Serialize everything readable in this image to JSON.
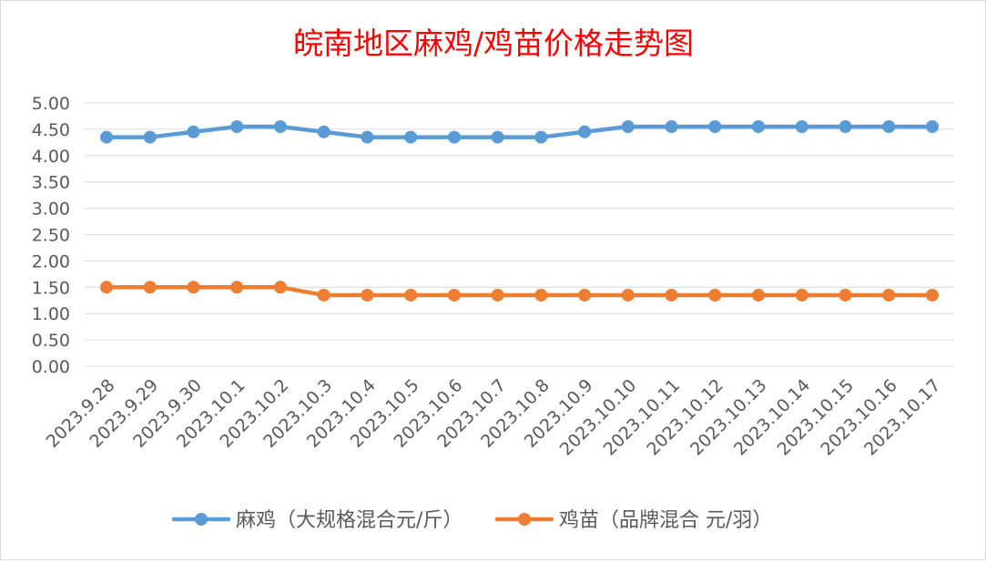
{
  "chart_data": {
    "type": "line",
    "title": "皖南地区麻鸡/鸡苗价格走势图",
    "categories": [
      "2023.9.28",
      "2023.9.29",
      "2023.9.30",
      "2023.10.1",
      "2023.10.2",
      "2023.10.3",
      "2023.10.4",
      "2023.10.5",
      "2023.10.6",
      "2023.10.7",
      "2023.10.8",
      "2023.10.9",
      "2023.10.10",
      "2023.10.11",
      "2023.10.12",
      "2023.10.13",
      "2023.10.14",
      "2023.10.15",
      "2023.10.16",
      "2023.10.17"
    ],
    "y_ticks": [
      "0.00",
      "0.50",
      "1.00",
      "1.50",
      "2.00",
      "2.50",
      "3.00",
      "3.50",
      "4.00",
      "4.50",
      "5.00"
    ],
    "ylim": [
      0,
      5
    ],
    "grid": true,
    "legend_position": "bottom",
    "series": [
      {
        "name": "麻鸡（大规格混合元/斤）",
        "color": "#5b9bd5",
        "values": [
          4.35,
          4.35,
          4.45,
          4.55,
          4.55,
          4.45,
          4.35,
          4.35,
          4.35,
          4.35,
          4.35,
          4.45,
          4.55,
          4.55,
          4.55,
          4.55,
          4.55,
          4.55,
          4.55,
          4.55
        ]
      },
      {
        "name": "鸡苗（品牌混合 元/羽）",
        "color": "#ed7d31",
        "values": [
          1.5,
          1.5,
          1.5,
          1.5,
          1.5,
          1.35,
          1.35,
          1.35,
          1.35,
          1.35,
          1.35,
          1.35,
          1.35,
          1.35,
          1.35,
          1.35,
          1.35,
          1.35,
          1.35,
          1.35
        ]
      }
    ],
    "title_color": "#ff0000"
  }
}
